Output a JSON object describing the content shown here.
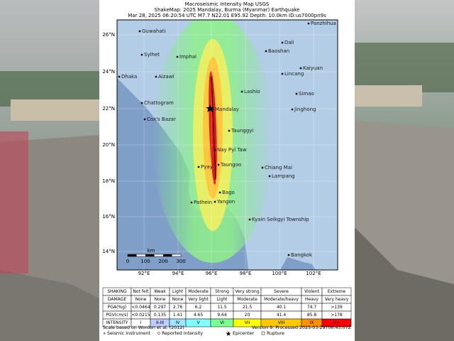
{
  "header": {
    "title": "Macroseismic Intensity Map USGS",
    "subtitle": "ShakeMap: 2025 Mandalay, Burma (Myanmar) Earthquake",
    "details": "Mar 28, 2025 06:20:54 UTC M7.7 N22.01 E95.92 Depth: 10.0km ID:us7000pn9s"
  },
  "map": {
    "lat_labels": [
      "26°N",
      "24°N",
      "22°N",
      "20°N",
      "18°N",
      "16°N",
      "14°N"
    ],
    "lon_labels": [
      "92°E",
      "94°E",
      "96°E",
      "98°E",
      "100°E",
      "102°E"
    ],
    "cities": [
      "Guwahati",
      "Panzhihua",
      "Dali",
      "Baoshan",
      "Sylhet",
      "Imphal",
      "Dhaka",
      "Aizawl",
      "Kaiyuan",
      "Lincang",
      "Chattogram",
      "Lashio",
      "Simao",
      "Mandalay",
      "Jinghong",
      "Cox's Bazar",
      "Taunggyi",
      "Nay Pyi Taw",
      "Pyay",
      "Taungoo",
      "Chiang Mai",
      "Lampang",
      "Bago",
      "Yangon",
      "Pathein",
      "Kyain Seikgyi Township",
      "Bangkok"
    ],
    "scale": {
      "unit": "km",
      "labels": [
        "0",
        "100",
        "200",
        "300"
      ]
    }
  },
  "legend": {
    "rows": [
      {
        "label": "SHAKING",
        "cells": [
          "Not felt",
          "Weak",
          "Light",
          "Moderate",
          "Strong",
          "Very strong",
          "Severe",
          "Violent",
          "Extreme"
        ]
      },
      {
        "label": "DAMAGE",
        "cells": [
          "None",
          "None",
          "None",
          "Very light",
          "Light",
          "Moderate",
          "Moderate/heavy",
          "Heavy",
          "Very heavy"
        ]
      },
      {
        "label": "PGA(%g)",
        "cells": [
          "<0.0464",
          "0.297",
          "2.76",
          "6.2",
          "11.5",
          "21.5",
          "40.1",
          "74.7",
          ">139"
        ]
      },
      {
        "label": "PGV(cm/s)",
        "cells": [
          "<0.0215",
          "0.135",
          "1.41",
          "4.65",
          "9.64",
          "20",
          "41.4",
          "85.8",
          ">178"
        ]
      },
      {
        "label": "INTENSITY",
        "cells": [
          "I",
          "II-III",
          "IV",
          "V",
          "VI",
          "VII",
          "VIII",
          "IX",
          "X+"
        ]
      }
    ]
  },
  "footer": {
    "scale_note": "Scale based on Worden et al. (2012)",
    "version": "Version 9: Processed 2025-03-29T06:43:07Z",
    "symbols": [
      "Seismic Instrument",
      "Reported Intensity",
      "Epicenter",
      "Rupture"
    ]
  }
}
